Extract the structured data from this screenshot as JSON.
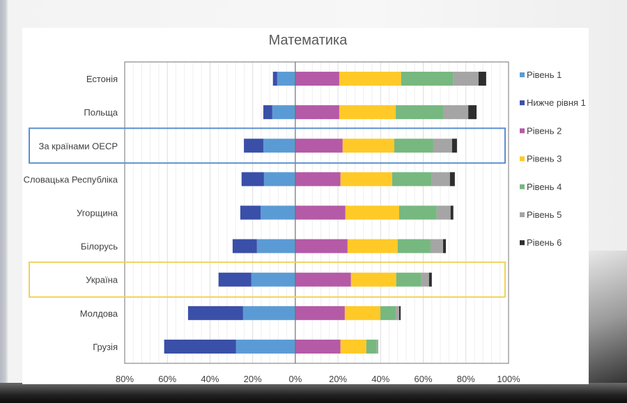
{
  "chart_data": {
    "type": "bar",
    "orientation": "horizontal-diverging-stacked",
    "title": "Математика",
    "xlabel": "",
    "ylabel": "",
    "xlim": [
      -80,
      100
    ],
    "x_ticks": [
      "80%",
      "60%",
      "40%",
      "20%",
      "0%",
      "20%",
      "40%",
      "60%",
      "80%",
      "100%"
    ],
    "x_tick_values": [
      -80,
      -60,
      -40,
      -20,
      0,
      20,
      40,
      60,
      80,
      100
    ],
    "grid": true,
    "legend_position": "right",
    "categories": [
      "Естонія",
      "Польща",
      "За країнами ОЕСР",
      "Словацька Республіка",
      "Угорщина",
      "Білорусь",
      "Україна",
      "Молдова",
      "Грузія"
    ],
    "highlighted": [
      {
        "category": "За країнами ОЕСР",
        "color": "#5b8fd0"
      },
      {
        "category": "Україна",
        "color": "#f2d155"
      }
    ],
    "series": [
      {
        "name": "Рівень 1",
        "color": "#5b9bd5",
        "side": "negative",
        "values": [
          8.5,
          10.8,
          15.0,
          14.7,
          16.3,
          18.0,
          20.6,
          24.5,
          27.8
        ]
      },
      {
        "name": "Нижче рівня 1",
        "color": "#3a4fa8",
        "side": "negative",
        "values": [
          2.0,
          4.2,
          9.1,
          10.5,
          9.5,
          11.4,
          15.4,
          25.8,
          33.7
        ]
      },
      {
        "name": "Рівень 2",
        "color": "#b55aa6",
        "side": "positive",
        "values": [
          20.6,
          20.6,
          22.2,
          21.2,
          23.5,
          24.5,
          26.1,
          23.2,
          21.2
        ]
      },
      {
        "name": "Рівень 3",
        "color": "#ffc928",
        "side": "positive",
        "values": [
          29.0,
          26.5,
          24.2,
          24.2,
          25.2,
          23.5,
          21.2,
          16.7,
          12.1
        ]
      },
      {
        "name": "Рівень 4",
        "color": "#76b880",
        "side": "positive",
        "values": [
          24.5,
          22.2,
          18.3,
          18.6,
          17.6,
          15.4,
          11.8,
          7.2,
          4.9
        ]
      },
      {
        "name": "Рівень 5",
        "color": "#a5a5a5",
        "side": "positive",
        "values": [
          11.8,
          11.8,
          8.8,
          8.5,
          6.5,
          5.9,
          3.6,
          1.6,
          0.7
        ]
      },
      {
        "name": "Рівень 6",
        "color": "#2e2e2e",
        "side": "positive",
        "values": [
          3.6,
          3.9,
          2.3,
          2.3,
          1.3,
          1.3,
          1.3,
          0.7,
          0
        ]
      }
    ]
  }
}
